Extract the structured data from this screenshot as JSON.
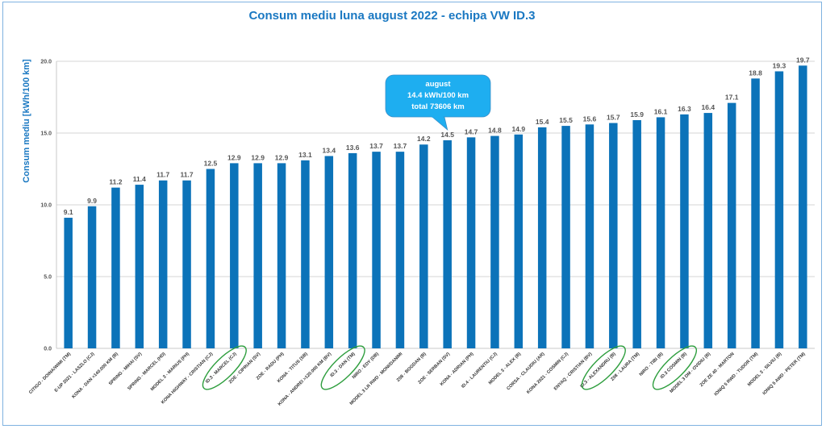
{
  "chart_data": {
    "type": "bar",
    "title": "Consum mediu luna august 2022 - echipa  VW ID.3",
    "xlabel": "",
    "ylabel": "Consum mediu [kWh/100 km]",
    "ylim": [
      0,
      20
    ],
    "yticks": [
      "0.0",
      "5.0",
      "10.0",
      "15.0",
      "20.0"
    ],
    "grid": true,
    "colors": {
      "bar": "#0c73b9",
      "title": "#1a78c2",
      "callout": "#1eaef0",
      "highlight_ellipse": "#2e9e3e"
    },
    "categories": [
      "CITIGO - DOINA/WIMI (TM)",
      "E-UP 2021 - LASZLO (CJ)",
      "KONA - DAN >140.000 KM (B)",
      "SPRING - MIHAI (SV)",
      "SPRING - MARCEL (HD)",
      "MODEL 3 - MARIUS (PH)",
      "KONA HIGHWAY - CRISTIAN (CJ)",
      "ID.3 - MARCEL (CJ)",
      "ZOE - CIPRIAN (SV)",
      "ZOE - RADU (PH)",
      "KONA - TITUS (SB)",
      "KONA - ANDREI >120.000 KM (BV)",
      "ID.3 - DAN (TM)",
      "NIRO - EDY (DB)",
      "MODEL 3 LR RWD - MONI/DANIMI",
      "Z08 - BOGDAN (B)",
      "ZOE - SERBAN (SV)",
      "KONA - ADRIAN (PH)",
      "ID.4 - LAURENTIU (CJ)",
      "MODEL 3 - ALEX (B)",
      "CORSA - CLAUDIU (AR)",
      "KONA 2021 - COSMIN (CJ)",
      "ENYAQ - CRISTIAN (BV)",
      "ID.3 - ALEXANDRU (B)",
      "Z08 - LAURA (TM)",
      "NIRO - TIBI (B)",
      "ID.3 COSMIN (B)",
      "MODEL 3 DM - OVIDIU (B)",
      "ZOE ZE 40 - MARTON",
      "IONIQ 5 RWD - TUDOR (TM)",
      "MODEL 3 - SILVIU (B)",
      "IONIQ 5 AWD - PETER (TM)"
    ],
    "values": [
      9.1,
      9.9,
      11.2,
      11.4,
      11.7,
      11.7,
      12.5,
      12.9,
      12.9,
      12.9,
      13.1,
      13.4,
      13.6,
      13.7,
      13.7,
      14.2,
      14.5,
      14.7,
      14.8,
      14.9,
      15.4,
      15.5,
      15.6,
      15.7,
      15.9,
      16.1,
      16.3,
      16.4,
      17.1,
      18.8,
      19.3,
      19.7
    ],
    "value_labels": [
      "9.1",
      "9.9",
      "11.2",
      "11.4",
      "11.7",
      "11.7",
      "12.5",
      "12.9",
      "12.9",
      "12.9",
      "13.1",
      "13.4",
      "13.6",
      "13.7",
      "13.7",
      "14.2",
      "14.5",
      "14.7",
      "14.8",
      "14.9",
      "15.4",
      "15.5",
      "15.6",
      "15.7",
      "15.9",
      "16.1",
      "16.3",
      "16.4",
      "17.1",
      "18.8",
      "19.3",
      "19.7"
    ],
    "highlighted_categories": [
      "ID.3 - MARCEL (CJ)",
      "ID.3 - DAN (TM)",
      "ID.3 - ALEXANDRU (B)",
      "ID.3 COSMIN (B)"
    ],
    "callout": {
      "line1": "august",
      "line2": "14.4 kWh/100 km",
      "line3": "total  73606 km",
      "points_to": "ZOE - SERBAN (SV)"
    }
  }
}
